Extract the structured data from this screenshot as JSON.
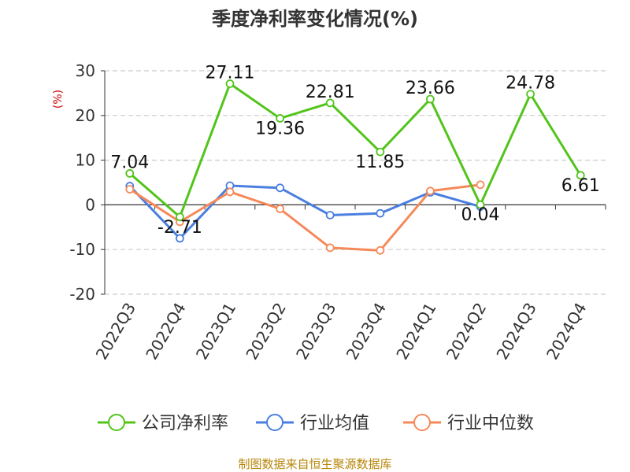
{
  "chart_data": {
    "type": "line",
    "title": "季度净利率变化情况(%)",
    "ylabel": "(%)",
    "categories": [
      "2022Q3",
      "2022Q4",
      "2023Q1",
      "2023Q2",
      "2023Q3",
      "2023Q4",
      "2024Q1",
      "2024Q2",
      "2024Q3",
      "2024Q4"
    ],
    "ylim": [
      -20,
      30
    ],
    "yticks": [
      30,
      20,
      10,
      0,
      -10,
      -20
    ],
    "grid": true,
    "legend_position": "bottom",
    "series": [
      {
        "name": "公司净利率",
        "color": "#52c41a",
        "values": [
          7.04,
          -2.71,
          27.11,
          19.36,
          22.81,
          11.85,
          23.66,
          0.04,
          24.78,
          6.61
        ],
        "labels": [
          "7.04",
          "-2.71",
          "27.11",
          "19.36",
          "22.81",
          "11.85",
          "23.66",
          "0.04",
          "24.78",
          "6.61"
        ]
      },
      {
        "name": "行业均值",
        "color": "#4a7fe0",
        "values": [
          4.2,
          -7.5,
          4.3,
          3.8,
          -2.3,
          -1.9,
          2.8,
          -0.4,
          null,
          null
        ]
      },
      {
        "name": "行业中位数",
        "color": "#f5895a",
        "values": [
          3.5,
          -3.8,
          2.9,
          -0.9,
          -9.6,
          -10.2,
          3.1,
          4.5,
          null,
          null
        ]
      }
    ],
    "source": "制图数据来自恒生聚源数据库"
  }
}
